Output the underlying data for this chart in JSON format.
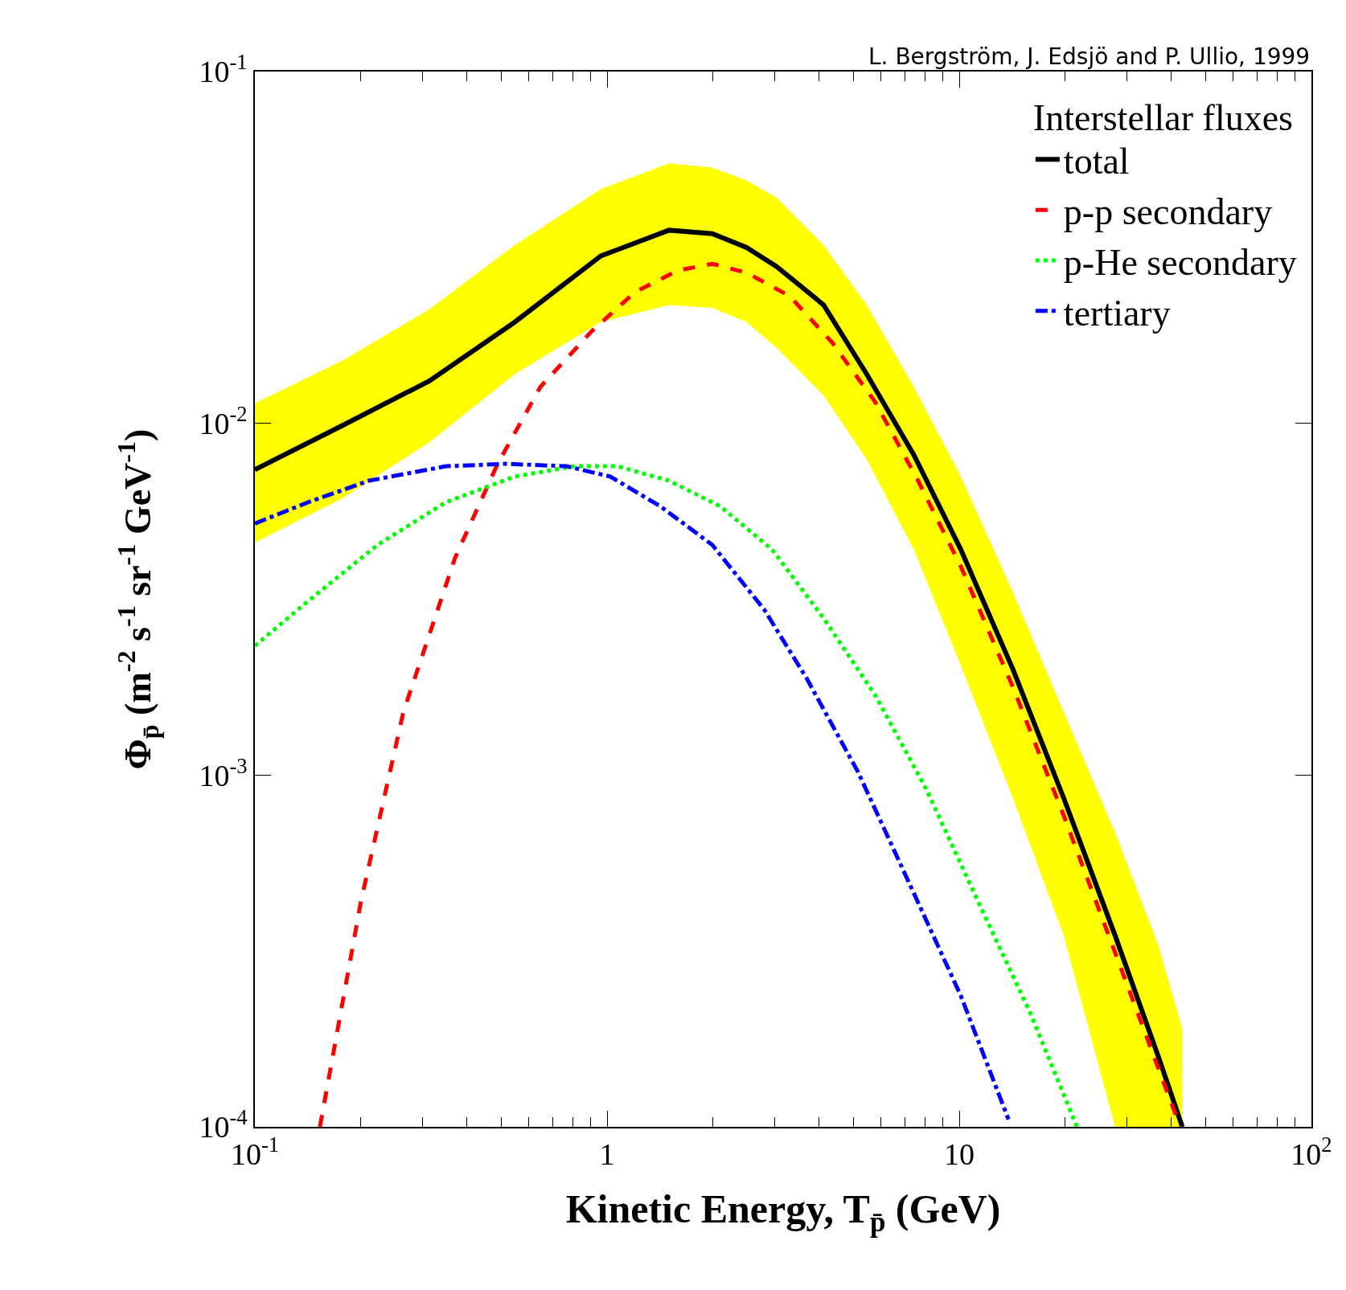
{
  "chart_data": {
    "type": "line",
    "xlabel": "Kinetic Energy, T$_{p̄}$ (GeV)",
    "ylabel": "Φ$_{p̄}$ (m$^{-2}$ s$^{-1}$ sr$^{-1}$ GeV$^{-1}$)",
    "legend_title": "Interstellar fluxes",
    "annotations": [
      "L. Bergström, J. Edsjö and P. Ullio, 1999"
    ],
    "log": "xy",
    "legend": "top right",
    "grid": false,
    "xlim": [
      0.1,
      100
    ],
    "ylim": [
      0.0001,
      0.1
    ],
    "xticks": [
      {
        "value": 0.1,
        "label": "10$^{-1}$"
      },
      {
        "value": 0.2,
        "label": null
      },
      {
        "value": 0.3,
        "label": null
      },
      {
        "value": 0.4,
        "label": null
      },
      {
        "value": 0.5,
        "label": null
      },
      {
        "value": 0.6,
        "label": null
      },
      {
        "value": 0.7,
        "label": null
      },
      {
        "value": 0.8,
        "label": null
      },
      {
        "value": 0.9,
        "label": null
      },
      1,
      {
        "value": 2,
        "label": null
      },
      {
        "value": 3,
        "label": null
      },
      {
        "value": 4,
        "label": null
      },
      {
        "value": 5,
        "label": null
      },
      {
        "value": 6,
        "label": null
      },
      {
        "value": 7,
        "label": null
      },
      {
        "value": 8,
        "label": null
      },
      {
        "value": 9,
        "label": null
      },
      10,
      {
        "value": 20,
        "label": null
      },
      {
        "value": 30,
        "label": null
      },
      {
        "value": 40,
        "label": null
      },
      {
        "value": 50,
        "label": null
      },
      {
        "value": 60,
        "label": null
      },
      {
        "value": 70,
        "label": null
      },
      {
        "value": 80,
        "label": null
      },
      {
        "value": 90,
        "label": null
      },
      {
        "value": 100,
        "label": "10$^{2}$"
      }
    ],
    "yticks": [
      {
        "value": 0.0001,
        "label": "10$^{-4}$"
      },
      {
        "value": 0.001,
        "label": "10$^{-3}$"
      },
      {
        "value": 0.01,
        "label": "10$^{-2}$"
      },
      {
        "value": 0.1,
        "label": "10$^{-1}$"
      }
    ],
    "series": [
      {
        "name": "total",
        "color": "#000000",
        "line_style": "solid",
        "x": [
          0.1,
          0.178,
          0.313,
          0.547,
          0.96,
          1.5,
          1.99,
          2.49,
          3.03,
          4.12,
          5.46,
          7.43,
          10.1,
          14.2,
          19.8,
          27.7,
          36.7,
          43.0
        ],
        "values": [
          0.00738,
          0.00988,
          0.0132,
          0.0194,
          0.0299,
          0.0354,
          0.0346,
          0.0316,
          0.0279,
          0.0217,
          0.0138,
          0.00813,
          0.00438,
          0.002,
          0.00086,
          0.00035,
          0.000159,
          0.0001
        ],
        "upper": [
          0.0114,
          0.0151,
          0.0211,
          0.0321,
          0.0463,
          0.0548,
          0.0533,
          0.049,
          0.0438,
          0.0321,
          0.0217,
          0.0127,
          0.00706,
          0.00331,
          0.00151,
          0.000687,
          0.00033,
          0.00019
        ],
        "lower": [
          0.00458,
          0.00614,
          0.00883,
          0.0138,
          0.0194,
          0.0217,
          0.0213,
          0.0194,
          0.0164,
          0.012,
          0.0079,
          0.00438,
          0.00205,
          0.00086,
          0.00035,
          0.0001,
          0.0001,
          0.0001
        ]
      },
      {
        "name": "p-p secondary",
        "color": "#ff0000",
        "line_style": "dashed",
        "x": [
          0.153,
          0.2,
          0.264,
          0.37,
          0.489,
          0.647,
          0.906,
          1.2,
          1.59,
          1.99,
          2.49,
          3.3,
          4.37,
          5.77,
          7.64,
          10.1,
          14.2,
          19.8,
          27.7,
          42.4
        ],
        "values": [
          0.0001,
          0.000437,
          0.00151,
          0.00414,
          0.00767,
          0.0127,
          0.0183,
          0.0236,
          0.0272,
          0.0284,
          0.0268,
          0.023,
          0.0169,
          0.0115,
          0.00687,
          0.00392,
          0.00178,
          0.000767,
          0.000313,
          0.0001
        ]
      },
      {
        "name": "p-He secondary",
        "color": "#00ff00",
        "line_style": "dotted",
        "x": [
          0.1,
          0.142,
          0.223,
          0.349,
          0.547,
          0.811,
          1.07,
          1.5,
          2.1,
          2.94,
          4.12,
          5.77,
          8.07,
          11.3,
          15.9,
          21.6
        ],
        "values": [
          0.00233,
          0.00313,
          0.00451,
          0.00597,
          0.00706,
          0.00755,
          0.00755,
          0.00687,
          0.0058,
          0.00438,
          0.00279,
          0.00169,
          0.00091,
          0.000438,
          0.000211,
          0.0001
        ]
      },
      {
        "name": "tertiary",
        "color": "#0000ff",
        "line_style": "dashdot",
        "x": [
          0.1,
          0.142,
          0.211,
          0.349,
          0.518,
          0.766,
          1.02,
          1.42,
          1.99,
          2.79,
          3.68,
          5.16,
          7.23,
          10.1,
          13.8
        ],
        "values": [
          0.00519,
          0.00597,
          0.00687,
          0.00755,
          0.00767,
          0.00755,
          0.00706,
          0.0058,
          0.00451,
          0.00296,
          0.00189,
          0.00102,
          0.00049,
          0.000236,
          0.000105
        ]
      }
    ]
  }
}
